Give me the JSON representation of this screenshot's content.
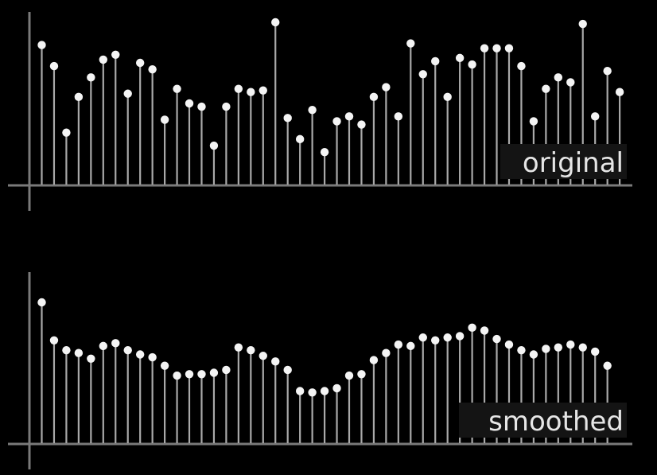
{
  "chart_data": [
    {
      "type": "stem",
      "title": "original",
      "xlabel": "",
      "ylabel": "",
      "ylim": [
        0,
        100
      ],
      "grid": false,
      "values": [
        86,
        73,
        32,
        54,
        66,
        77,
        80,
        56,
        75,
        71,
        40,
        59,
        50,
        48,
        24,
        48,
        59,
        57,
        58,
        100,
        41,
        28,
        46,
        20,
        39,
        42,
        37,
        54,
        60,
        42,
        87,
        68,
        76,
        54,
        78,
        74,
        84,
        84,
        84,
        73,
        39,
        59,
        66,
        63,
        99,
        42,
        70,
        57
      ]
    },
    {
      "type": "stem",
      "title": "smoothed",
      "xlabel": "",
      "ylabel": "",
      "ylim": [
        0,
        100
      ],
      "grid": false,
      "values": [
        100,
        73,
        66,
        64,
        60,
        69,
        71,
        66,
        63,
        61,
        55,
        48,
        49,
        49,
        50,
        52,
        68,
        66,
        62,
        58,
        52,
        37,
        36,
        37,
        39,
        48,
        49,
        59,
        64,
        70,
        69,
        75,
        73,
        75,
        76,
        82,
        80,
        74,
        70,
        66,
        63,
        67,
        68,
        70,
        68,
        65,
        55
      ]
    }
  ]
}
